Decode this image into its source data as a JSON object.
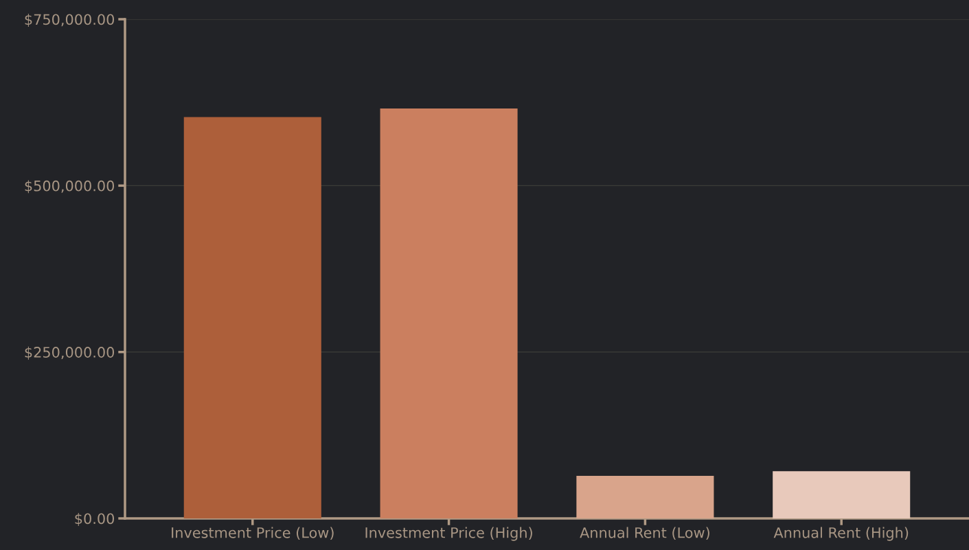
{
  "chart_data": {
    "type": "bar",
    "categories": [
      "Investment Price (Low)",
      "Investment Price (High)",
      "Annual Rent (Low)",
      "Annual Rent (High)"
    ],
    "values": [
      603000,
      616000,
      64000,
      71000
    ],
    "colors": [
      "#ad5f3a",
      "#cb7f5f",
      "#d9a48b",
      "#e8c9bb"
    ],
    "ylim": [
      0,
      750000
    ],
    "yticks": [
      {
        "value": 0,
        "label": "$0.00"
      },
      {
        "value": 250000,
        "label": "$250,000.00"
      },
      {
        "value": 500000,
        "label": "$500,000.00"
      },
      {
        "value": 750000,
        "label": "$750,000.00"
      }
    ],
    "grid": "y"
  }
}
